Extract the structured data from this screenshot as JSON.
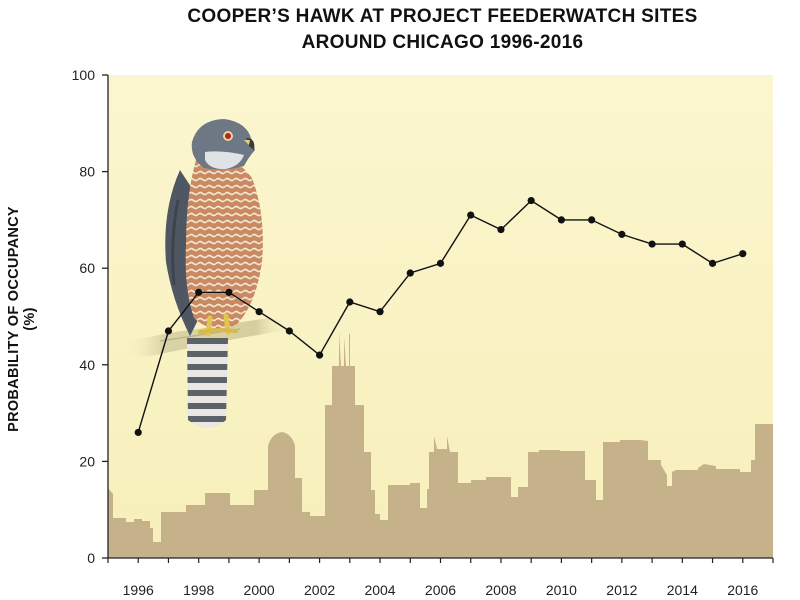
{
  "chart_data": {
    "type": "line",
    "title": "COOPER’S HAWK AT PROJECT FEEDERWATCH SITES",
    "subtitle": "AROUND CHICAGO 1996-2016",
    "xlabel": "",
    "ylabel": "PROBABILITY OF OCCUPANCY (%)",
    "xlim": [
      1995,
      2017
    ],
    "ylim": [
      0,
      100
    ],
    "x_ticks": [
      "1996",
      "1998",
      "2000",
      "2002",
      "2004",
      "2006",
      "2008",
      "2010",
      "2012",
      "2014",
      "2016"
    ],
    "y_ticks": [
      "0",
      "20",
      "40",
      "60",
      "80",
      "100"
    ],
    "grid": false,
    "x": [
      1996,
      1997,
      1998,
      1999,
      2000,
      2001,
      2002,
      2003,
      2004,
      2005,
      2006,
      2007,
      2008,
      2009,
      2010,
      2011,
      2012,
      2013,
      2014,
      2015,
      2016
    ],
    "values": [
      26,
      47,
      55,
      55,
      51,
      47,
      42,
      53,
      51,
      59,
      61,
      71,
      68,
      74,
      70,
      70,
      67,
      65,
      65,
      61,
      63
    ],
    "background_color": "#faf5c8",
    "skyline_color": "#c6b28a",
    "line_color": "#111111",
    "illustration": "cooper-hawk-perched-on-branch"
  }
}
